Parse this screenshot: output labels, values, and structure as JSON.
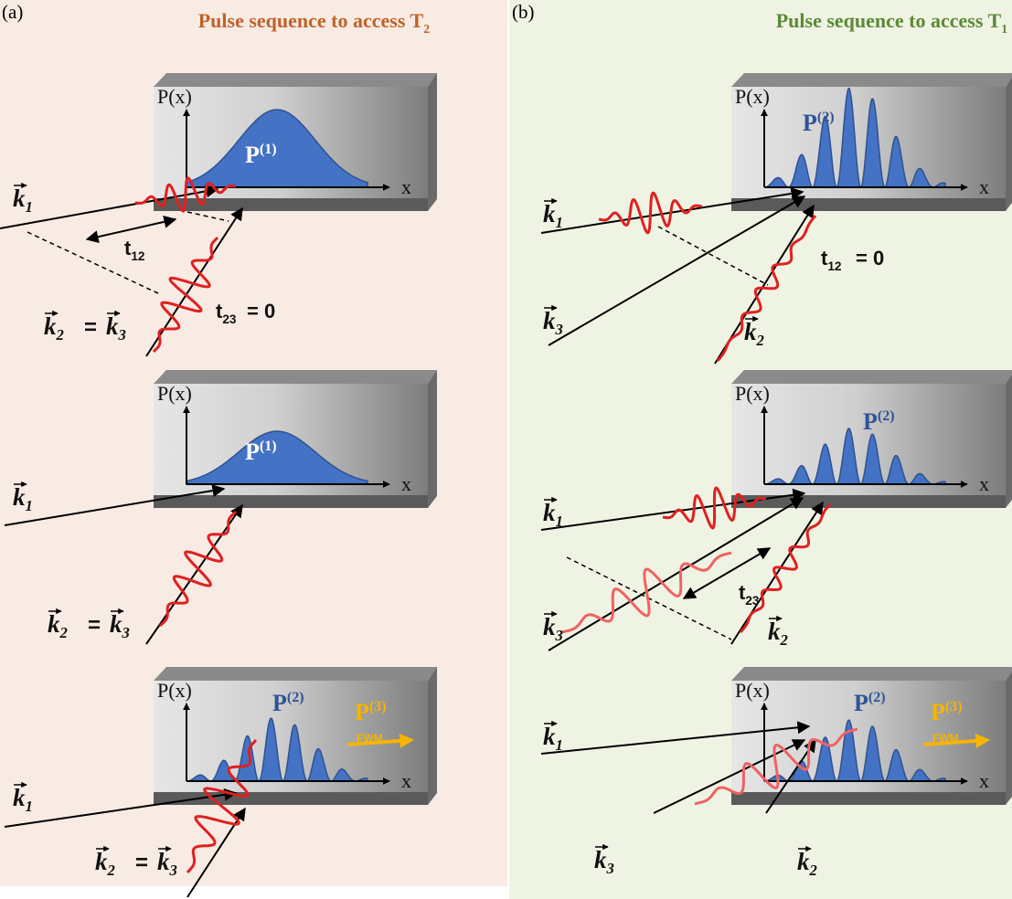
{
  "panel_a": {
    "label": "(a)",
    "title": {
      "text": "Pulse sequence to access T",
      "sub": "2"
    },
    "rows": [
      {
        "y_axis": {
          "text": "P(x)"
        },
        "x_axis": {
          "text": "x"
        },
        "signal": {
          "text": "P",
          "sup": "(1)"
        },
        "beam_labels": [
          {
            "text": "k",
            "sub": "1"
          },
          {
            "text": "k",
            "sub": "2"
          },
          {
            "text": "="
          },
          {
            "text": "k",
            "sub": "3"
          }
        ],
        "delay_labels": [
          {
            "text": "t",
            "sub": "12"
          },
          {
            "text": "t",
            "sub": "23"
          },
          {
            "text": "= 0"
          }
        ]
      },
      {
        "y_axis": {
          "text": "P(x)"
        },
        "x_axis": {
          "text": "x"
        },
        "signal": {
          "text": "P",
          "sup": "(1)"
        },
        "beam_labels": [
          {
            "text": "k",
            "sub": "1"
          },
          {
            "text": "k",
            "sub": "2"
          },
          {
            "text": "="
          },
          {
            "text": "k",
            "sub": "3"
          }
        ]
      },
      {
        "y_axis": {
          "text": "P(x)"
        },
        "x_axis": {
          "text": "x"
        },
        "signal": {
          "text": "P",
          "sup": "(2)"
        },
        "output": {
          "text": "P",
          "sup": "(3)"
        },
        "output_note": "FWM",
        "beam_labels": [
          {
            "text": "k",
            "sub": "1"
          },
          {
            "text": "k",
            "sub": "2"
          },
          {
            "text": "="
          },
          {
            "text": "k",
            "sub": "3"
          }
        ]
      }
    ]
  },
  "panel_b": {
    "label": "(b)",
    "title": {
      "text": "Pulse sequence to access T",
      "sub": "1"
    },
    "rows": [
      {
        "y_axis": {
          "text": "P(x)"
        },
        "x_axis": {
          "text": "x"
        },
        "signal": {
          "text": "P",
          "sup": "(2)"
        },
        "beam_labels": [
          {
            "text": "k",
            "sub": "1"
          },
          {
            "text": "k",
            "sub": "3"
          },
          {
            "text": "k",
            "sub": "2"
          }
        ],
        "delay_labels": [
          {
            "text": "t",
            "sub": "12"
          },
          {
            "text": "= 0"
          }
        ]
      },
      {
        "y_axis": {
          "text": "P(x)"
        },
        "x_axis": {
          "text": "x"
        },
        "signal": {
          "text": "P",
          "sup": "(2)"
        },
        "beam_labels": [
          {
            "text": "k",
            "sub": "1"
          },
          {
            "text": "k",
            "sub": "3"
          },
          {
            "text": "k",
            "sub": "2"
          }
        ],
        "delay_labels": [
          {
            "text": "t",
            "sub": "23"
          }
        ]
      },
      {
        "y_axis": {
          "text": "P(x)"
        },
        "x_axis": {
          "text": "x"
        },
        "signal": {
          "text": "P",
          "sup": "(2)"
        },
        "output": {
          "text": "P",
          "sup": "(3)"
        },
        "output_note": "FWM",
        "beam_labels": [
          {
            "text": "k",
            "sub": "1"
          },
          {
            "text": "k",
            "sub": "3"
          },
          {
            "text": "k",
            "sub": "2"
          }
        ]
      }
    ]
  }
}
